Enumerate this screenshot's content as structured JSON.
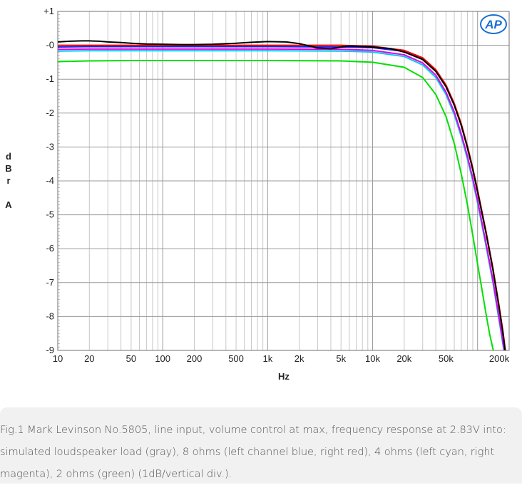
{
  "chart_data": {
    "type": "line",
    "x_scale": "log",
    "xlim": [
      10,
      200000
    ],
    "ylim": [
      -9,
      1
    ],
    "xlabel": "Hz",
    "ylabel_chars": [
      "d",
      "B",
      "r",
      "",
      "A"
    ],
    "xticks": [
      {
        "value": 10,
        "label": "10"
      },
      {
        "value": 20,
        "label": "20"
      },
      {
        "value": 50,
        "label": "50"
      },
      {
        "value": 100,
        "label": "100"
      },
      {
        "value": 200,
        "label": "200"
      },
      {
        "value": 500,
        "label": "500"
      },
      {
        "value": 1000,
        "label": "1k"
      },
      {
        "value": 2000,
        "label": "2k"
      },
      {
        "value": 5000,
        "label": "5k"
      },
      {
        "value": 10000,
        "label": "10k"
      },
      {
        "value": 20000,
        "label": "20k"
      },
      {
        "value": 50000,
        "label": "50k"
      },
      {
        "value": 200000,
        "label": "200k"
      }
    ],
    "yticks": [
      {
        "value": 1,
        "label": "+1"
      },
      {
        "value": 0,
        "label": "-0"
      },
      {
        "value": -1,
        "label": "-1"
      },
      {
        "value": -2,
        "label": "-2"
      },
      {
        "value": -3,
        "label": "-3"
      },
      {
        "value": -4,
        "label": "-4"
      },
      {
        "value": -5,
        "label": "-5"
      },
      {
        "value": -6,
        "label": "-6"
      },
      {
        "value": -7,
        "label": "-7"
      },
      {
        "value": -8,
        "label": "-8"
      },
      {
        "value": -9,
        "label": "-9"
      }
    ],
    "grid": true,
    "logo": "AP",
    "series": [
      {
        "color": "#00e000",
        "x": [
          10,
          20,
          50,
          100,
          1000,
          5000,
          10000,
          20000,
          30000,
          40000,
          50000,
          60000,
          70000,
          80000,
          90000,
          100000,
          110000,
          120000,
          130000,
          140000,
          150000
        ],
        "y": [
          -0.48,
          -0.46,
          -0.45,
          -0.45,
          -0.45,
          -0.46,
          -0.5,
          -0.65,
          -0.95,
          -1.45,
          -2.1,
          -2.9,
          -3.8,
          -4.7,
          -5.6,
          -6.45,
          -7.2,
          -7.9,
          -8.5,
          -8.95,
          -9.2
        ]
      },
      {
        "color": "#00c8f0",
        "x": [
          10,
          20,
          50,
          100,
          1000,
          5000,
          10000,
          20000,
          30000,
          40000,
          50000,
          60000,
          70000,
          80000,
          90000,
          100000,
          120000,
          140000,
          160000,
          170000,
          180000
        ],
        "y": [
          -0.17,
          -0.16,
          -0.16,
          -0.16,
          -0.16,
          -0.17,
          -0.2,
          -0.33,
          -0.58,
          -0.95,
          -1.45,
          -2.05,
          -2.7,
          -3.35,
          -4.0,
          -4.65,
          -5.9,
          -7.0,
          -8.1,
          -8.6,
          -9.1
        ]
      },
      {
        "color": "#e000e0",
        "x": [
          10,
          20,
          50,
          100,
          1000,
          5000,
          10000,
          20000,
          30000,
          40000,
          50000,
          60000,
          70000,
          80000,
          90000,
          100000,
          120000,
          140000,
          160000,
          170000,
          180000
        ],
        "y": [
          -0.12,
          -0.11,
          -0.11,
          -0.11,
          -0.11,
          -0.12,
          -0.15,
          -0.28,
          -0.52,
          -0.88,
          -1.38,
          -1.97,
          -2.62,
          -3.27,
          -3.92,
          -4.57,
          -5.82,
          -6.92,
          -8.02,
          -8.52,
          -9.02
        ]
      },
      {
        "color": "#2020f0",
        "x": [
          10,
          20,
          50,
          100,
          1000,
          5000,
          10000,
          20000,
          30000,
          40000,
          50000,
          60000,
          70000,
          80000,
          90000,
          100000,
          120000,
          140000,
          160000,
          175000,
          185000
        ],
        "y": [
          -0.05,
          -0.04,
          -0.04,
          -0.04,
          -0.04,
          -0.05,
          -0.07,
          -0.18,
          -0.4,
          -0.75,
          -1.2,
          -1.75,
          -2.35,
          -3.0,
          -3.65,
          -4.3,
          -5.5,
          -6.6,
          -7.7,
          -8.5,
          -9.1
        ]
      },
      {
        "color": "#f00000",
        "x": [
          10,
          20,
          50,
          100,
          1000,
          5000,
          10000,
          20000,
          30000,
          40000,
          50000,
          60000,
          70000,
          80000,
          90000,
          100000,
          120000,
          140000,
          160000,
          175000,
          185000
        ],
        "y": [
          0.0,
          0.0,
          0.0,
          0.0,
          0.0,
          0.0,
          -0.03,
          -0.15,
          -0.37,
          -0.72,
          -1.17,
          -1.72,
          -2.32,
          -2.97,
          -3.62,
          -4.27,
          -5.47,
          -6.57,
          -7.67,
          -8.47,
          -9.07
        ]
      },
      {
        "color": "#000000",
        "x": [
          10,
          13,
          17,
          20,
          25,
          30,
          40,
          50,
          70,
          100,
          150,
          200,
          300,
          500,
          700,
          1000,
          1500,
          2000,
          3000,
          4000,
          5000,
          6000,
          7000,
          8000,
          10000,
          15000,
          20000,
          30000,
          40000,
          50000,
          60000,
          70000,
          80000,
          90000,
          100000,
          120000,
          140000,
          160000,
          175000,
          185000
        ],
        "y": [
          0.1,
          0.12,
          0.13,
          0.13,
          0.12,
          0.1,
          0.08,
          0.06,
          0.04,
          0.03,
          0.02,
          0.02,
          0.03,
          0.06,
          0.09,
          0.11,
          0.1,
          0.05,
          -0.08,
          -0.1,
          -0.05,
          -0.02,
          -0.03,
          -0.04,
          -0.05,
          -0.1,
          -0.2,
          -0.42,
          -0.77,
          -1.22,
          -1.77,
          -2.37,
          -3.02,
          -3.67,
          -4.32,
          -5.52,
          -6.62,
          -7.72,
          -8.52,
          -9.12
        ]
      }
    ]
  },
  "caption": {
    "text": "Fig.1 Mark Levinson No.5805, line input, volume control at max, frequency response at 2.83V into: simulated loudspeaker load (gray), 8 ohms (left channel blue, right red), 4 ohms (left cyan, right magenta), 2 ohms (green) (1dB/vertical div.)."
  }
}
